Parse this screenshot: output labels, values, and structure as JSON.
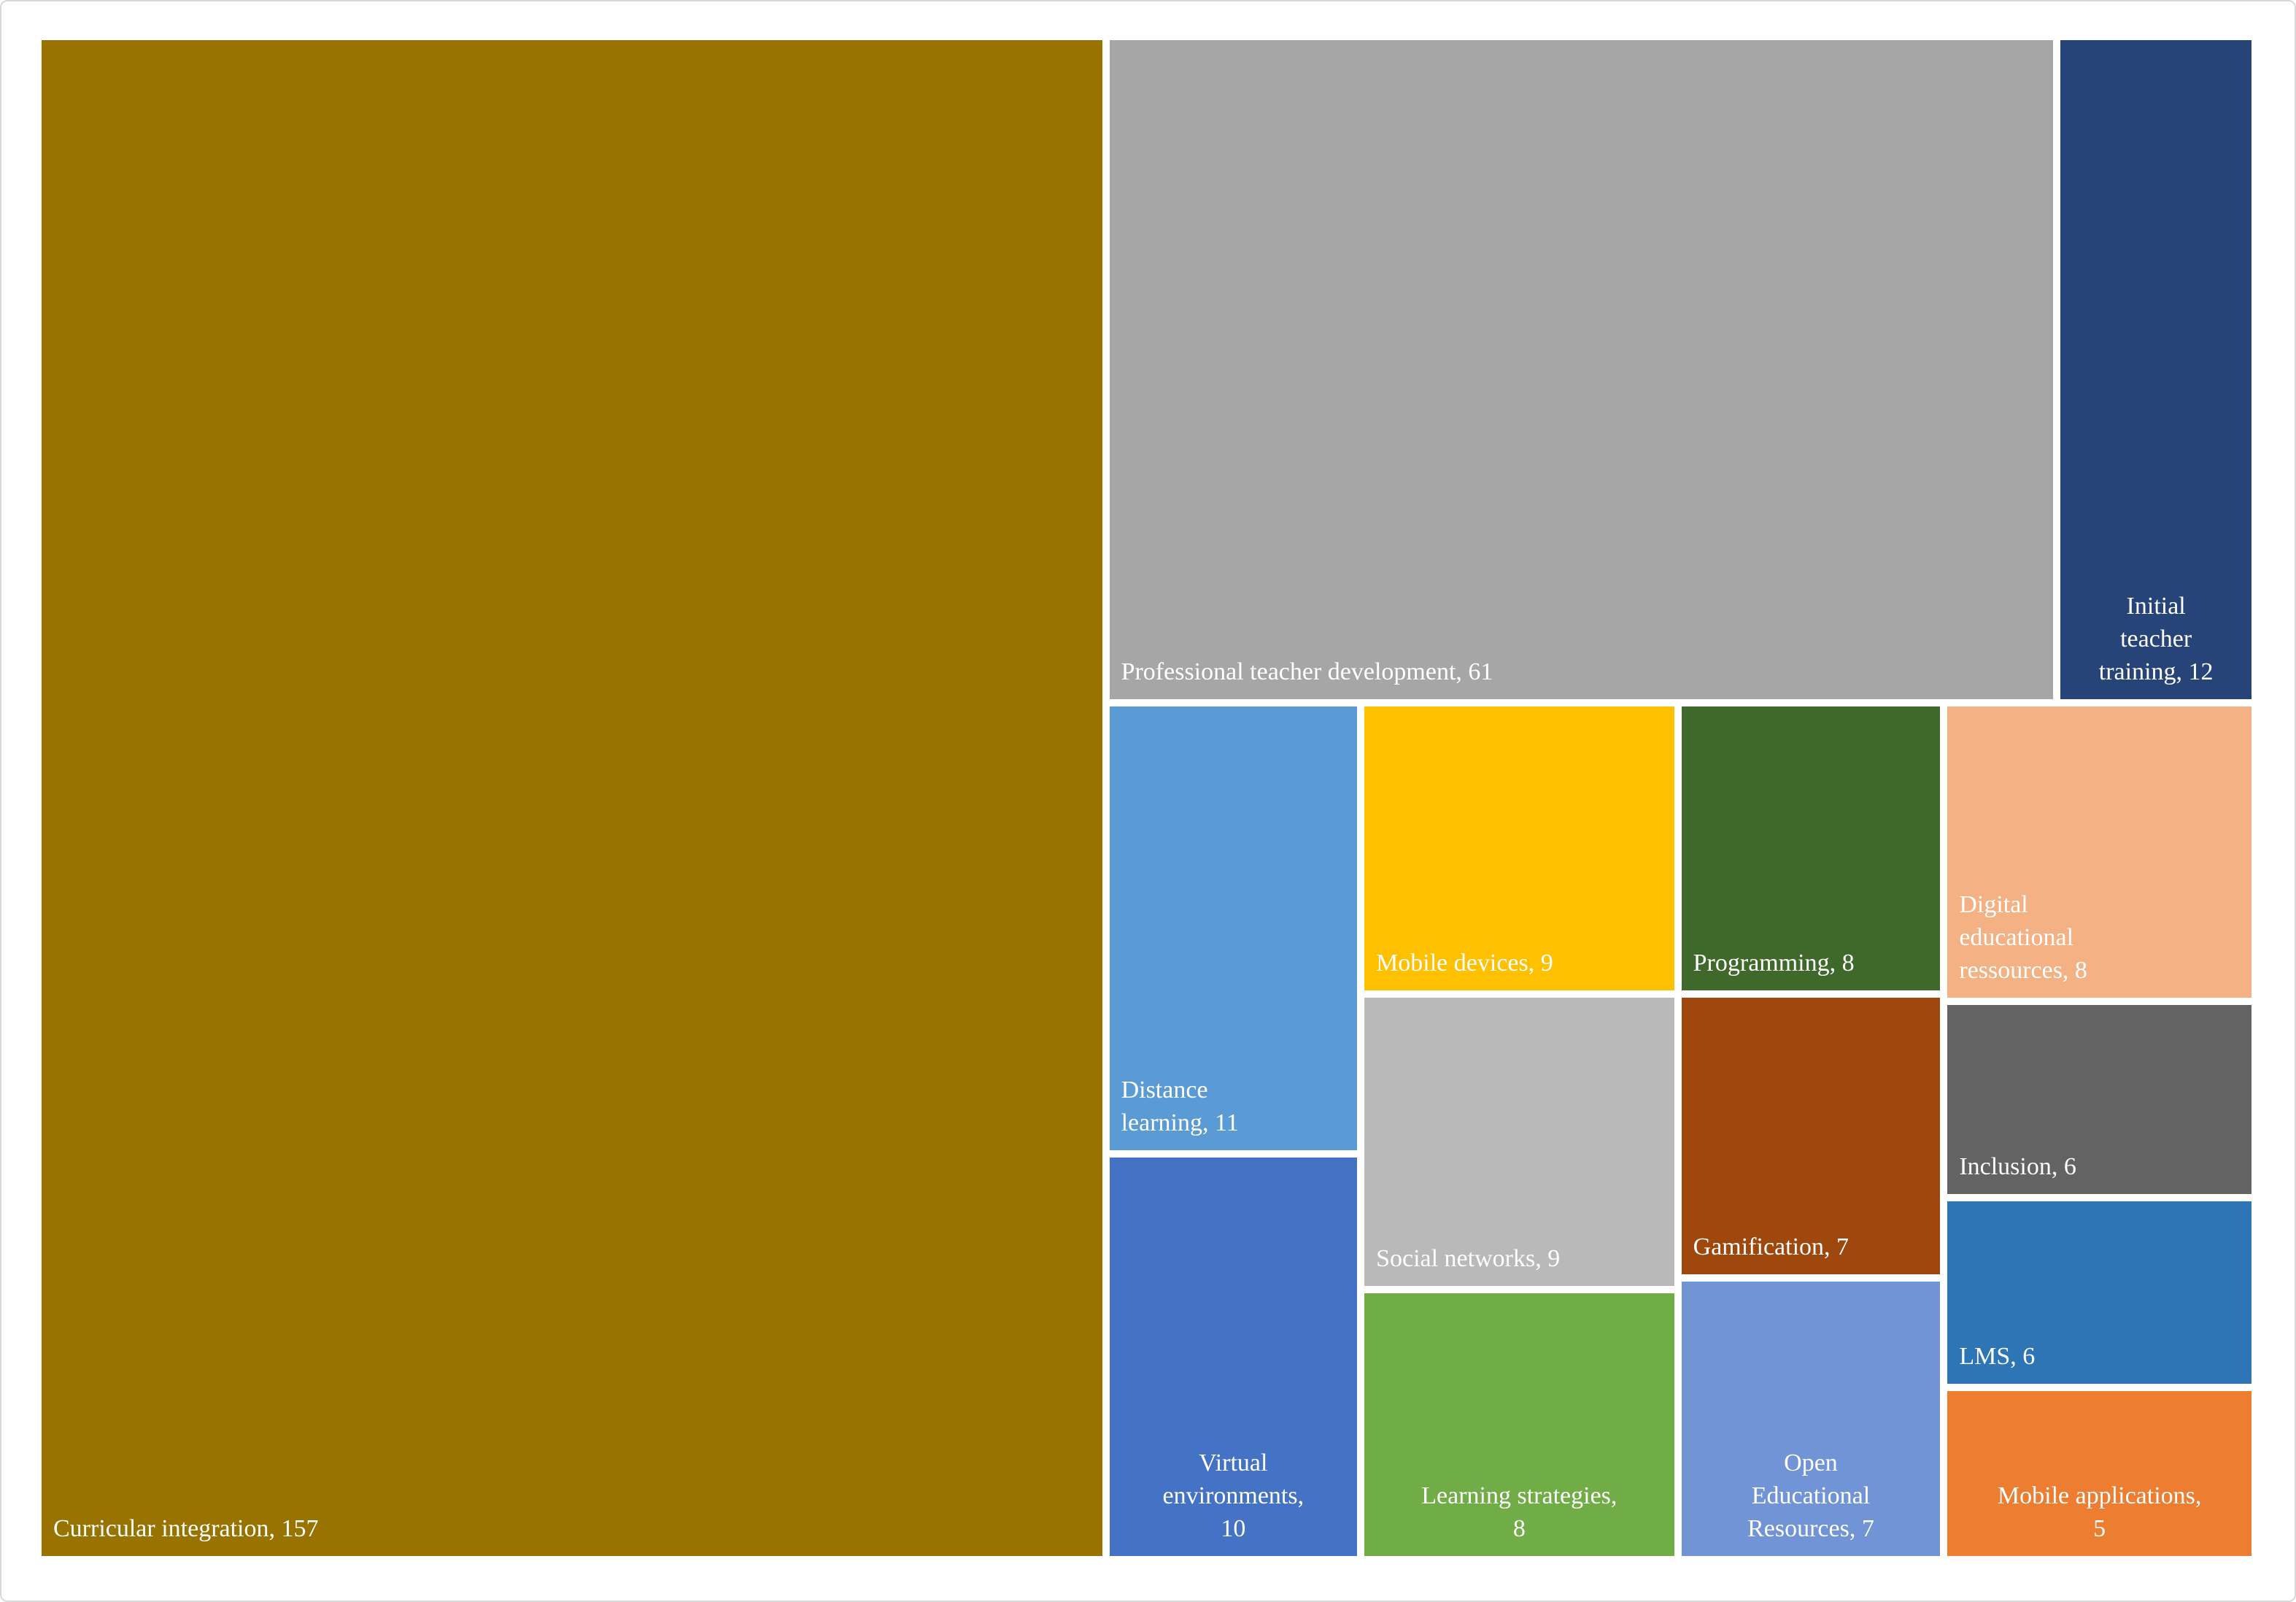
{
  "chart_data": {
    "type": "treemap",
    "title": "",
    "legend": "none",
    "label_text_color": "#ffffff",
    "nodes": [
      {
        "name": "Curricular integration",
        "value": 157,
        "color": "#997300",
        "label": "Curricular integration, 157"
      },
      {
        "name": "Professional teacher development",
        "value": 61,
        "color": "#A6A6A6",
        "label": "Professional teacher development, 61"
      },
      {
        "name": "Initial teacher training",
        "value": 12,
        "color": "#264478",
        "label": "Initial\nteacher\ntraining, 12"
      },
      {
        "name": "Distance learning",
        "value": 11,
        "color": "#5B9BD5",
        "label": "Distance\nlearning, 11"
      },
      {
        "name": "Virtual environments",
        "value": 10,
        "color": "#4472C4",
        "label": "Virtual\nenvironments,\n10"
      },
      {
        "name": "Mobile devices",
        "value": 9,
        "color": "#FFC000",
        "label": "Mobile devices, 9"
      },
      {
        "name": "Social networks",
        "value": 9,
        "color": "#B9B9B9",
        "label": "Social networks, 9"
      },
      {
        "name": "Learning strategies",
        "value": 8,
        "color": "#70AD47",
        "label": "Learning strategies,\n8"
      },
      {
        "name": "Programming",
        "value": 8,
        "color": "#3F682B",
        "label": "Programming, 8"
      },
      {
        "name": "Gamification",
        "value": 7,
        "color": "#9E480E",
        "label": "Gamification, 7"
      },
      {
        "name": "Open Educational Resources",
        "value": 7,
        "color": "#7094D6",
        "label": "Open\nEducational\nResources, 7"
      },
      {
        "name": "Digital educational ressources",
        "value": 8,
        "color": "#F4B183",
        "label": "Digital\neducational\nressources, 8"
      },
      {
        "name": "Inclusion",
        "value": 6,
        "color": "#636363",
        "label": "Inclusion, 6"
      },
      {
        "name": "LMS",
        "value": 6,
        "color": "#2E75B6",
        "label": "LMS, 6"
      },
      {
        "name": "Mobile applications",
        "value": 5,
        "color": "#ED7D31",
        "label": "Mobile applications,\n5"
      }
    ]
  }
}
